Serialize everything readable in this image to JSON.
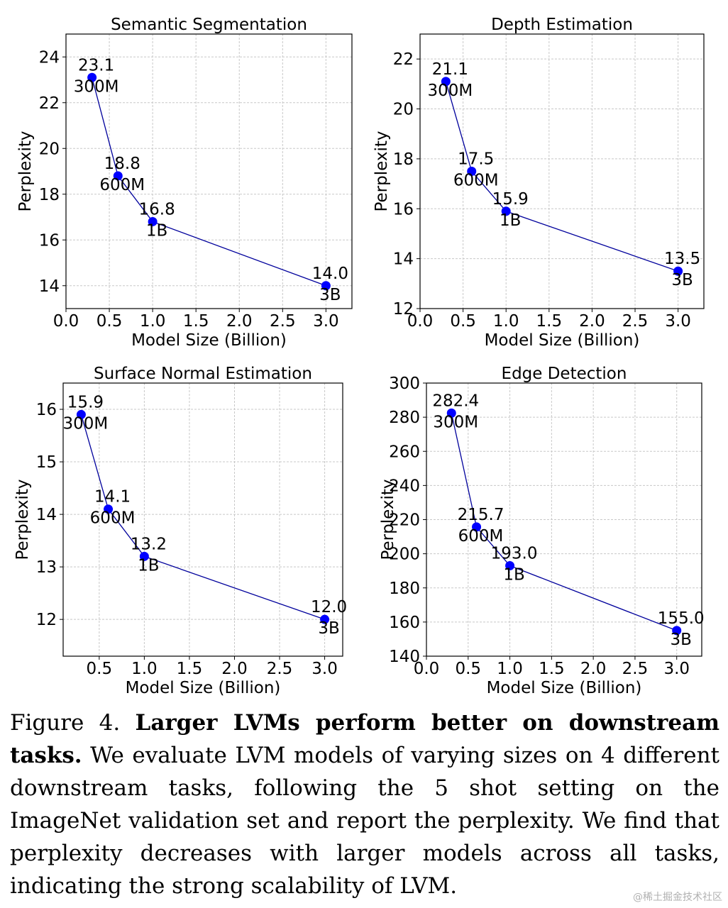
{
  "chart_data": [
    {
      "type": "line",
      "title": "Semantic Segmentation",
      "xlabel": "Model Size (Billion)",
      "ylabel": "Perplexity",
      "x": [
        0.3,
        0.6,
        1.0,
        3.0
      ],
      "values": [
        23.1,
        18.8,
        16.8,
        14.0
      ],
      "value_labels": [
        "23.1",
        "18.8",
        "16.8",
        "14.0"
      ],
      "size_labels": [
        "300M",
        "600M",
        "1B",
        "3B"
      ],
      "xlim": [
        0.0,
        3.3
      ],
      "ylim": [
        13.0,
        25.0
      ],
      "xticks": [
        0.0,
        0.5,
        1.0,
        1.5,
        2.0,
        2.5,
        3.0
      ],
      "xtick_labels": [
        "0.0",
        "0.5",
        "1.0",
        "1.5",
        "2.0",
        "2.5",
        "3.0"
      ],
      "yticks": [
        14,
        16,
        18,
        20,
        22,
        24
      ],
      "ytick_labels": [
        "14",
        "16",
        "18",
        "20",
        "22",
        "24"
      ],
      "grid": true,
      "color": "#0000ff",
      "line_color": "#00009c"
    },
    {
      "type": "line",
      "title": "Depth Estimation",
      "xlabel": "Model Size (Billion)",
      "ylabel": "Perplexity",
      "x": [
        0.3,
        0.6,
        1.0,
        3.0
      ],
      "values": [
        21.1,
        17.5,
        15.9,
        13.5
      ],
      "value_labels": [
        "21.1",
        "17.5",
        "15.9",
        "13.5"
      ],
      "size_labels": [
        "300M",
        "600M",
        "1B",
        "3B"
      ],
      "xlim": [
        0.0,
        3.3
      ],
      "ylim": [
        12.0,
        23.0
      ],
      "xticks": [
        0.0,
        0.5,
        1.0,
        1.5,
        2.0,
        2.5,
        3.0
      ],
      "xtick_labels": [
        "0.0",
        "0.5",
        "1.0",
        "1.5",
        "2.0",
        "2.5",
        "3.0"
      ],
      "yticks": [
        12,
        14,
        16,
        18,
        20,
        22
      ],
      "ytick_labels": [
        "12",
        "14",
        "16",
        "18",
        "20",
        "22"
      ],
      "grid": true,
      "color": "#0000ff",
      "line_color": "#00009c"
    },
    {
      "type": "line",
      "title": "Surface Normal Estimation",
      "xlabel": "Model Size (Billion)",
      "ylabel": "Perplexity",
      "x": [
        0.3,
        0.6,
        1.0,
        3.0
      ],
      "values": [
        15.9,
        14.1,
        13.2,
        12.0
      ],
      "value_labels": [
        "15.9",
        "14.1",
        "13.2",
        "12.0"
      ],
      "size_labels": [
        "300M",
        "600M",
        "1B",
        "3B"
      ],
      "xlim": [
        0.1,
        3.2
      ],
      "ylim": [
        11.3,
        16.5
      ],
      "xticks": [
        0.5,
        1.0,
        1.5,
        2.0,
        2.5,
        3.0
      ],
      "xtick_labels": [
        "0.5",
        "1.0",
        "1.5",
        "2.0",
        "2.5",
        "3.0"
      ],
      "yticks": [
        12,
        13,
        14,
        15,
        16
      ],
      "ytick_labels": [
        "12",
        "13",
        "14",
        "15",
        "16"
      ],
      "grid": true,
      "color": "#0000ff",
      "line_color": "#00009c"
    },
    {
      "type": "line",
      "title": "Edge Detection",
      "xlabel": "Model Size (Billion)",
      "ylabel": "Perplexity",
      "x": [
        0.3,
        0.6,
        1.0,
        3.0
      ],
      "values": [
        282.4,
        215.7,
        193.0,
        155.0
      ],
      "value_labels": [
        "282.4",
        "215.7",
        "193.0",
        "155.0"
      ],
      "size_labels": [
        "300M",
        "600M",
        "1B",
        "3B"
      ],
      "xlim": [
        0.0,
        3.3
      ],
      "ylim": [
        140,
        300
      ],
      "xticks": [
        0.0,
        0.5,
        1.0,
        1.5,
        2.0,
        2.5,
        3.0
      ],
      "xtick_labels": [
        "0.0",
        "0.5",
        "1.0",
        "1.5",
        "2.0",
        "2.5",
        "3.0"
      ],
      "yticks": [
        140,
        160,
        180,
        200,
        220,
        240,
        260,
        280,
        300
      ],
      "ytick_labels": [
        "140",
        "160",
        "180",
        "200",
        "220",
        "240",
        "260",
        "280",
        "300"
      ],
      "grid": true,
      "color": "#0000ff",
      "line_color": "#00009c"
    }
  ],
  "caption": {
    "label": "Figure 4.",
    "bold": "Larger LVMs perform better on downstream tasks.",
    "body": "We evaluate LVM models of varying sizes on 4 different downstream tasks, following the 5 shot setting on the ImageNet validation set and report the perplexity. We find that perplexity decreases with larger models across all tasks, indicating the strong scalability of LVM."
  },
  "watermark": "@稀土掘金技术社区"
}
